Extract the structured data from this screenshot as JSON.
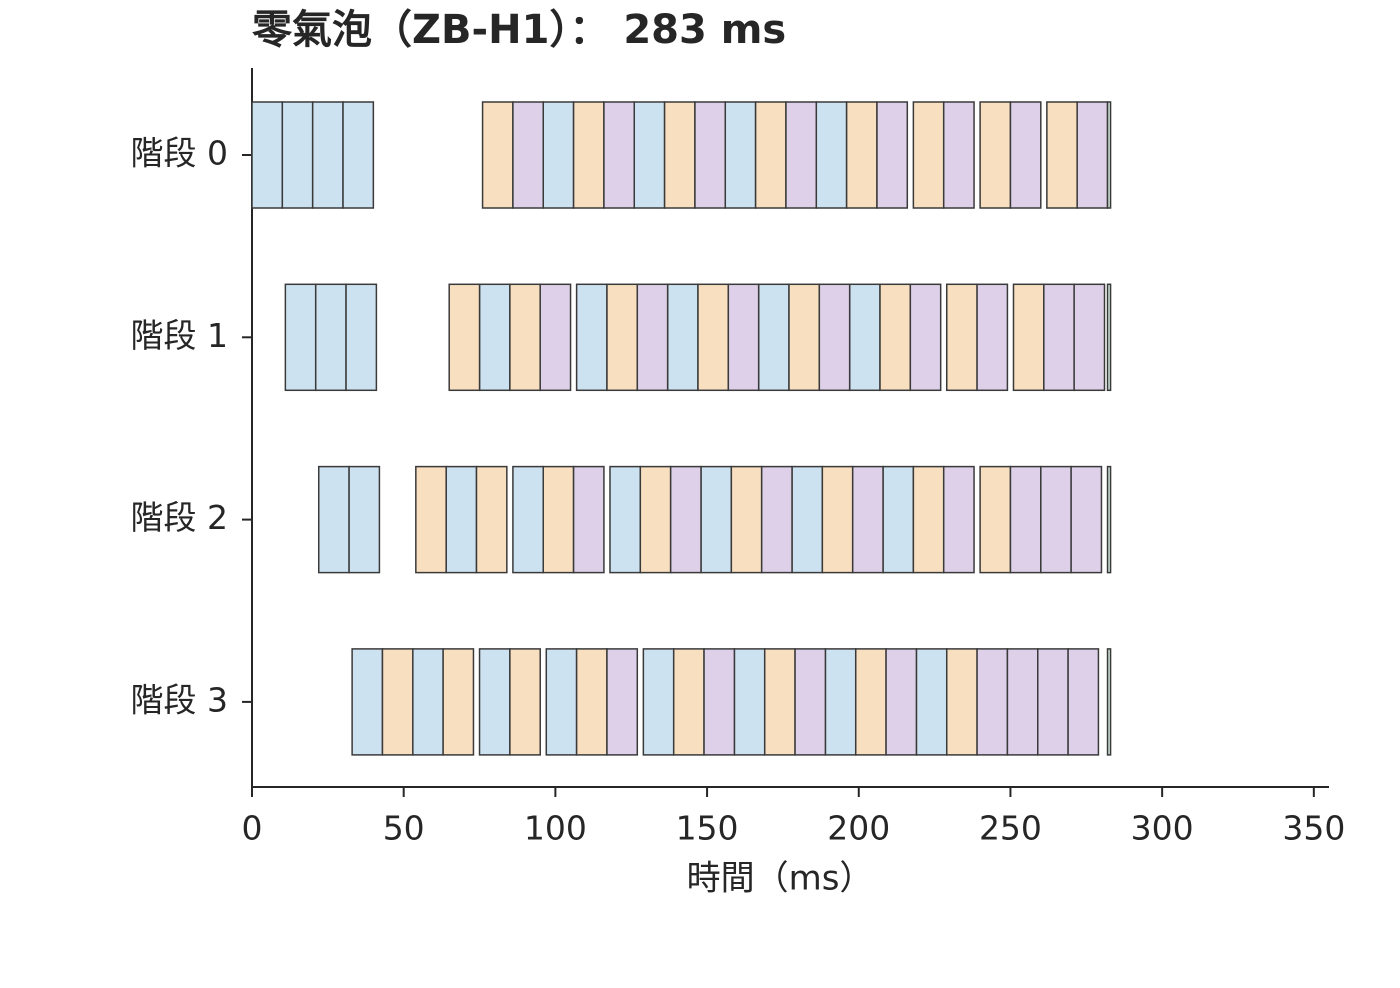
{
  "chart_data": {
    "type": "gantt",
    "title": "零氣泡（ZB-H1）： 283 ms",
    "xlabel": "時間（ms）",
    "categories": [
      "階段 0",
      "階段 1",
      "階段 2",
      "階段 3"
    ],
    "xlim": [
      0,
      355
    ],
    "xticks": [
      0,
      50,
      100,
      150,
      200,
      250,
      300,
      350
    ],
    "series": [
      {
        "color": "#cde2f1",
        "values": [
          [
            [
              0,
              10
            ],
            [
              10,
              20
            ],
            [
              20,
              30
            ],
            [
              30,
              40
            ],
            [
              96,
              106
            ],
            [
              126,
              136
            ],
            [
              156,
              166
            ],
            [
              186,
              196
            ]
          ],
          [
            [
              11,
              21
            ],
            [
              21,
              31
            ],
            [
              31,
              41
            ],
            [
              75,
              85
            ],
            [
              107,
              117
            ],
            [
              137,
              147
            ],
            [
              167,
              177
            ],
            [
              197,
              207
            ]
          ],
          [
            [
              22,
              32
            ],
            [
              32,
              42
            ],
            [
              64,
              74
            ],
            [
              86,
              96
            ],
            [
              118,
              128
            ],
            [
              148,
              158
            ],
            [
              178,
              188
            ],
            [
              208,
              218
            ]
          ],
          [
            [
              33,
              43
            ],
            [
              53,
              63
            ],
            [
              75,
              85
            ],
            [
              97,
              107
            ],
            [
              129,
              139
            ],
            [
              159,
              169
            ],
            [
              189,
              199
            ],
            [
              219,
              229
            ]
          ]
        ]
      },
      {
        "color": "#f8dfc0",
        "values": [
          [
            [
              76,
              86
            ],
            [
              106,
              116
            ],
            [
              136,
              146
            ],
            [
              166,
              176
            ],
            [
              196,
              206
            ],
            [
              218,
              228
            ],
            [
              240,
              250
            ],
            [
              262,
              272
            ]
          ],
          [
            [
              65,
              75
            ],
            [
              85,
              95
            ],
            [
              117,
              127
            ],
            [
              147,
              157
            ],
            [
              177,
              187
            ],
            [
              207,
              217
            ],
            [
              229,
              239
            ],
            [
              251,
              261
            ]
          ],
          [
            [
              54,
              64
            ],
            [
              74,
              84
            ],
            [
              96,
              106
            ],
            [
              128,
              138
            ],
            [
              158,
              168
            ],
            [
              188,
              198
            ],
            [
              218,
              228
            ],
            [
              240,
              250
            ]
          ],
          [
            [
              43,
              53
            ],
            [
              63,
              73
            ],
            [
              85,
              95
            ],
            [
              107,
              117
            ],
            [
              139,
              149
            ],
            [
              169,
              179
            ],
            [
              199,
              209
            ],
            [
              229,
              239
            ]
          ]
        ]
      },
      {
        "color": "#ddd0e8",
        "values": [
          [
            [
              86,
              96
            ],
            [
              116,
              126
            ],
            [
              146,
              156
            ],
            [
              176,
              186
            ],
            [
              206,
              216
            ],
            [
              228,
              238
            ],
            [
              250,
              260
            ],
            [
              272,
              282
            ]
          ],
          [
            [
              95,
              105
            ],
            [
              127,
              137
            ],
            [
              157,
              167
            ],
            [
              187,
              197
            ],
            [
              217,
              227
            ],
            [
              239,
              249
            ],
            [
              261,
              271
            ],
            [
              271,
              281
            ]
          ],
          [
            [
              106,
              116
            ],
            [
              138,
              148
            ],
            [
              168,
              178
            ],
            [
              198,
              208
            ],
            [
              228,
              238
            ],
            [
              250,
              260
            ],
            [
              260,
              270
            ],
            [
              270,
              280
            ]
          ],
          [
            [
              117,
              127
            ],
            [
              149,
              159
            ],
            [
              179,
              189
            ],
            [
              209,
              219
            ],
            [
              239,
              249
            ],
            [
              249,
              259
            ],
            [
              259,
              269
            ],
            [
              269,
              279
            ]
          ]
        ]
      },
      {
        "color": "#cfe5d8",
        "values": [
          [
            [
              282,
              283
            ]
          ],
          [
            [
              282,
              283
            ]
          ],
          [
            [
              282,
              283
            ]
          ],
          [
            [
              282,
              283
            ]
          ]
        ]
      }
    ]
  }
}
